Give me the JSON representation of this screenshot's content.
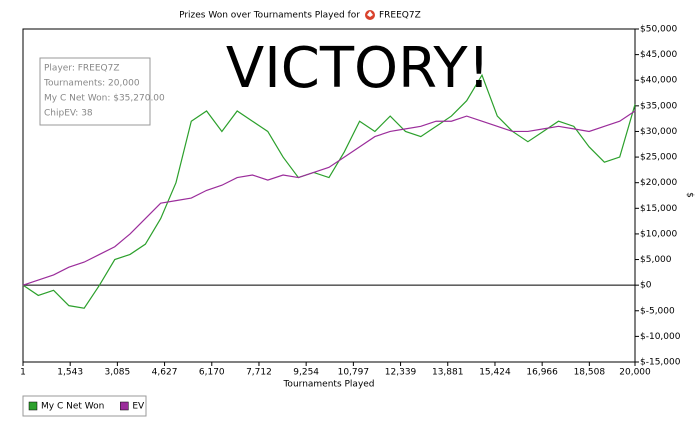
{
  "chart_data": {
    "type": "line",
    "title": "Prizes Won over Tournaments Played for",
    "title_player": "FREEQ7Z",
    "annotation": "VICTORY!",
    "info_box": [
      "Player: FREEQ7Z",
      "Tournaments: 20,000",
      "My C Net Won: $35,270.00",
      "ChipEV: 38"
    ],
    "x_label": "Tournaments Played",
    "y_label": "$",
    "x": [
      1,
      500,
      1000,
      1500,
      2000,
      2500,
      3000,
      3500,
      4000,
      4500,
      5000,
      5500,
      6000,
      6500,
      7000,
      7500,
      8000,
      8500,
      9000,
      9500,
      10000,
      10500,
      11000,
      11500,
      12000,
      12500,
      13000,
      13500,
      14000,
      14500,
      15000,
      15500,
      16000,
      16500,
      17000,
      17500,
      18000,
      18500,
      19000,
      19500,
      20000
    ],
    "series": [
      {
        "name": "My C Net Won",
        "color": "#2ca02c",
        "values": [
          0,
          -2000,
          -1000,
          -4000,
          -4500,
          0,
          5000,
          6000,
          8000,
          13000,
          20000,
          32000,
          34000,
          30000,
          34000,
          32000,
          30000,
          25000,
          21000,
          22000,
          21000,
          26000,
          32000,
          30000,
          33000,
          30000,
          29000,
          31000,
          33000,
          36000,
          41000,
          33000,
          30000,
          28000,
          30000,
          32000,
          31000,
          27000,
          24000,
          25000,
          35270
        ]
      },
      {
        "name": "EV",
        "color": "#9b2d9b",
        "values": [
          0,
          1000,
          2000,
          3500,
          4500,
          6000,
          7500,
          10000,
          13000,
          16000,
          16500,
          17000,
          18500,
          19500,
          21000,
          21500,
          20500,
          21500,
          21000,
          22000,
          23000,
          25000,
          27000,
          29000,
          30000,
          30500,
          31000,
          32000,
          32000,
          33000,
          32000,
          31000,
          30000,
          30000,
          30500,
          31000,
          30500,
          30000,
          31000,
          32000,
          34000
        ]
      }
    ],
    "xlim": [
      1,
      20000
    ],
    "xticks": [
      1,
      {
        "value": 1543,
        "label": "1,543"
      },
      {
        "value": 3085,
        "label": "3,085"
      },
      {
        "value": 4627,
        "label": "4,627"
      },
      {
        "value": 6170,
        "label": "6,170"
      },
      {
        "value": 7712,
        "label": "7,712"
      },
      {
        "value": 9254,
        "label": "9,254"
      },
      {
        "value": 10797,
        "label": "10,797"
      },
      {
        "value": 12339,
        "label": "12,339"
      },
      {
        "value": 13881,
        "label": "13,881"
      },
      {
        "value": 15424,
        "label": "15,424"
      },
      {
        "value": 16966,
        "label": "16,966"
      },
      {
        "value": 18508,
        "label": "18,508"
      },
      {
        "value": 20000,
        "label": "20,000"
      }
    ],
    "ylim": [
      -15000,
      50000
    ],
    "yticks": [
      {
        "value": -15000,
        "label": "$-15,000"
      },
      {
        "value": -10000,
        "label": "$-10,000"
      },
      {
        "value": -5000,
        "label": "$-5,000"
      },
      {
        "value": 0,
        "label": "$0"
      },
      {
        "value": 5000,
        "label": "$5,000"
      },
      {
        "value": 10000,
        "label": "$10,000"
      },
      {
        "value": 15000,
        "label": "$15,000"
      },
      {
        "value": 20000,
        "label": "$20,000"
      },
      {
        "value": 25000,
        "label": "$25,000"
      },
      {
        "value": 30000,
        "label": "$30,000"
      },
      {
        "value": 35000,
        "label": "$35,000"
      },
      {
        "value": 40000,
        "label": "$40,000"
      },
      {
        "value": 45000,
        "label": "$45,000"
      },
      {
        "value": 50000,
        "label": "$50,000"
      }
    ],
    "grid": false
  }
}
